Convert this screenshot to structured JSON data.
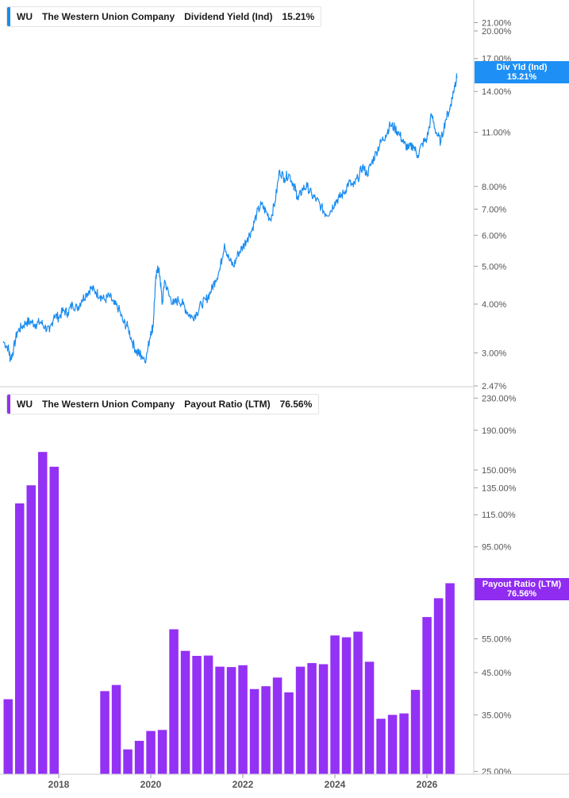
{
  "colors": {
    "yield": "#1a8cf0",
    "payout": "#9331f4",
    "grid": "#e6e6e6",
    "axis": "#555555"
  },
  "legend_top": {
    "ticker": "WU",
    "company": "The Western Union Company",
    "metric": "Dividend Yield (Ind)",
    "value": "15.21%"
  },
  "legend_bottom": {
    "ticker": "WU",
    "company": "The Western Union Company",
    "metric": "Payout Ratio (LTM)",
    "value": "76.56%"
  },
  "tag_top": {
    "label": "Div Yld (Ind)",
    "value": "15.21%"
  },
  "tag_bottom": {
    "label": "Payout Ratio (LTM)",
    "value": "76.56%"
  },
  "chart_data": [
    {
      "type": "line",
      "scale": "log",
      "ylim": [
        2.47,
        24
      ],
      "yticks": [
        {
          "v": 21,
          "label": "21.00%"
        },
        {
          "v": 20,
          "label": "20.00%"
        },
        {
          "v": 17,
          "label": "17.00%"
        },
        {
          "v": 14,
          "label": "14.00%"
        },
        {
          "v": 11,
          "label": "11.00%"
        },
        {
          "v": 8,
          "label": "8.00%"
        },
        {
          "v": 7,
          "label": "7.00%"
        },
        {
          "v": 6,
          "label": "6.00%"
        },
        {
          "v": 5,
          "label": "5.00%"
        },
        {
          "v": 4,
          "label": "4.00%"
        },
        {
          "v": 3,
          "label": "3.00%"
        },
        {
          "v": 2.47,
          "label": "2.47%"
        }
      ],
      "series": [
        {
          "x": [
            2016.8,
            2016.9,
            2016.95,
            2017.0,
            2017.1,
            2017.2,
            2017.3,
            2017.4,
            2017.5,
            2017.6,
            2017.7,
            2017.8,
            2017.9,
            2018.0,
            2018.1,
            2018.2,
            2018.3,
            2018.4,
            2018.5,
            2018.6,
            2018.7,
            2018.8,
            2018.9,
            2019.0,
            2019.1,
            2019.2,
            2019.3,
            2019.4,
            2019.5,
            2019.6,
            2019.7,
            2019.75,
            2019.8,
            2019.9,
            2020.0,
            2020.05,
            2020.1,
            2020.15,
            2020.2,
            2020.25,
            2020.3,
            2020.4,
            2020.5,
            2020.6,
            2020.7,
            2020.8,
            2020.9,
            2021.0,
            2021.1,
            2021.2,
            2021.3,
            2021.4,
            2021.5,
            2021.6,
            2021.7,
            2021.8,
            2021.9,
            2022.0,
            2022.1,
            2022.2,
            2022.3,
            2022.4,
            2022.5,
            2022.6,
            2022.7,
            2022.8,
            2022.9,
            2023.0,
            2023.1,
            2023.15,
            2023.2,
            2023.3,
            2023.4,
            2023.5,
            2023.6,
            2023.7,
            2023.8,
            2023.9,
            2024.0,
            2024.1,
            2024.2,
            2024.3,
            2024.4,
            2024.5,
            2024.6,
            2024.7,
            2024.8,
            2024.9,
            2025.0,
            2025.1,
            2025.2,
            2025.3,
            2025.4,
            2025.5,
            2025.6,
            2025.7,
            2025.8,
            2025.9,
            2026.0,
            2026.1,
            2026.2,
            2026.3,
            2026.4,
            2026.5,
            2026.55,
            2026.6,
            2026.65
          ],
          "y": [
            3.2,
            3.1,
            2.9,
            3.0,
            3.4,
            3.5,
            3.6,
            3.6,
            3.55,
            3.6,
            3.5,
            3.4,
            3.75,
            3.7,
            3.85,
            3.8,
            4.0,
            3.9,
            4.1,
            4.25,
            4.4,
            4.3,
            4.2,
            4.1,
            4.2,
            4.0,
            3.9,
            3.6,
            3.5,
            3.2,
            3.0,
            3.0,
            2.95,
            2.9,
            3.4,
            3.5,
            4.5,
            5.0,
            4.7,
            4.0,
            4.6,
            4.2,
            4.0,
            4.1,
            4.0,
            3.8,
            3.7,
            3.8,
            4.0,
            4.1,
            4.3,
            4.6,
            4.9,
            5.7,
            5.2,
            5.0,
            5.4,
            5.6,
            5.9,
            6.2,
            6.8,
            7.2,
            6.9,
            6.6,
            7.3,
            8.8,
            8.4,
            8.6,
            8.1,
            7.8,
            7.4,
            7.9,
            8.0,
            7.6,
            7.4,
            7.1,
            6.8,
            6.9,
            7.3,
            7.5,
            7.7,
            8.2,
            8.0,
            8.4,
            9.0,
            8.6,
            9.2,
            9.8,
            10.4,
            10.8,
            11.5,
            11.3,
            10.9,
            10.3,
            10.0,
            10.2,
            9.6,
            10.3,
            10.6,
            12.2,
            11.0,
            10.4,
            11.8,
            12.7,
            13.5,
            14.5,
            15.21
          ]
        }
      ]
    },
    {
      "type": "bar",
      "scale": "log",
      "ylim": [
        24.6,
        245
      ],
      "yticks": [
        {
          "v": 230,
          "label": "230.00%"
        },
        {
          "v": 190,
          "label": "190.00%"
        },
        {
          "v": 150,
          "label": "150.00%"
        },
        {
          "v": 135,
          "label": "135.00%"
        },
        {
          "v": 115,
          "label": "115.00%"
        },
        {
          "v": 95,
          "label": "95.00%"
        },
        {
          "v": 55,
          "label": "55.00%"
        },
        {
          "v": 45,
          "label": "45.00%"
        },
        {
          "v": 35,
          "label": "35.00%"
        },
        {
          "v": 25,
          "label": "25.00%"
        }
      ],
      "x": [
        2016.9,
        2017.15,
        2017.4,
        2017.65,
        2017.9,
        2019.0,
        2019.25,
        2019.5,
        2019.75,
        2020.0,
        2020.25,
        2020.5,
        2020.75,
        2021.0,
        2021.25,
        2021.5,
        2021.75,
        2022.0,
        2022.25,
        2022.5,
        2022.75,
        2023.0,
        2023.25,
        2023.5,
        2023.75,
        2024.0,
        2024.25,
        2024.5,
        2024.75,
        2025.0,
        2025.25,
        2025.5,
        2025.75,
        2026.0,
        2026.25,
        2026.5
      ],
      "series": [
        {
          "values": [
            38.4,
            123,
            137,
            167,
            153,
            40.3,
            41.8,
            28.5,
            30.0,
            31.8,
            32.0,
            58.2,
            51.2,
            49.7,
            49.8,
            46.6,
            46.5,
            47.0,
            40.8,
            41.5,
            43.7,
            40.0,
            46.6,
            47.6,
            47.3,
            56.1,
            55.5,
            57.4,
            48.0,
            34.2,
            35.0,
            35.3,
            40.6,
            62.6,
            70.0,
            76.56
          ]
        }
      ]
    }
  ],
  "x_axis": {
    "labels": [
      "2018",
      "2020",
      "2022",
      "2024",
      "2026"
    ],
    "values": [
      2018,
      2020,
      2022,
      2024,
      2026
    ]
  }
}
